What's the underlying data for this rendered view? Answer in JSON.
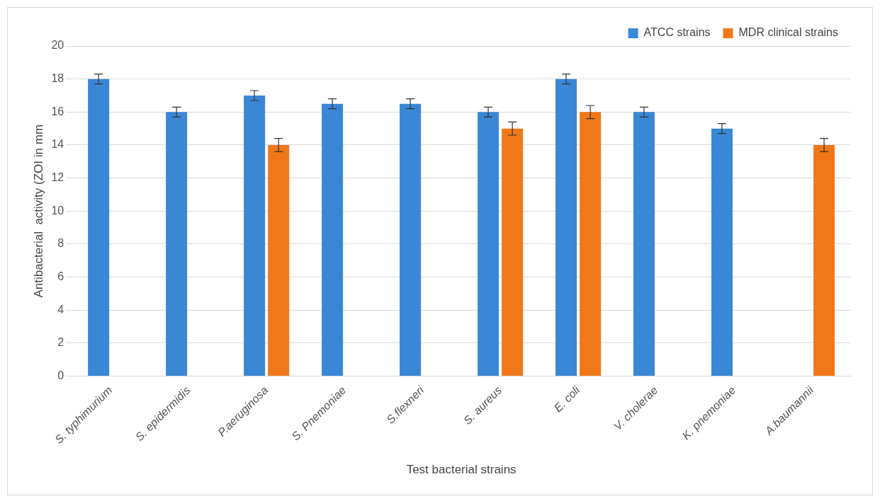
{
  "chart_data": {
    "type": "bar",
    "xlabel": "Test bacterial strains",
    "ylabel": "Antibacterial  activity (ZOI in mm",
    "categories": [
      "S. typhimurium",
      "S. epidermidis",
      "P.aeruginosa",
      "S. Pnemoniae",
      "S.flexneri",
      "S. aureus",
      "E. coli",
      "V. cholerae",
      "K. pnemoniae",
      "A.baumannii"
    ],
    "series": [
      {
        "name": "ATCC strains",
        "color": "#3a87d6",
        "values": [
          18,
          16,
          17,
          16.5,
          16.5,
          16,
          18,
          16,
          15,
          null
        ],
        "errors": [
          0.3,
          0.3,
          0.3,
          0.3,
          0.3,
          0.3,
          0.3,
          0.3,
          0.3,
          null
        ]
      },
      {
        "name": "MDR clinical strains",
        "color": "#f07818",
        "values": [
          null,
          null,
          14,
          null,
          null,
          15,
          16,
          null,
          null,
          14
        ],
        "errors": [
          null,
          null,
          0.4,
          null,
          null,
          0.4,
          0.4,
          null,
          null,
          0.4
        ]
      }
    ],
    "ylim": [
      0,
      20
    ],
    "yticks": [
      0,
      2,
      4,
      6,
      8,
      10,
      12,
      14,
      16,
      18,
      20
    ],
    "grid": "y",
    "legend": "top right"
  }
}
